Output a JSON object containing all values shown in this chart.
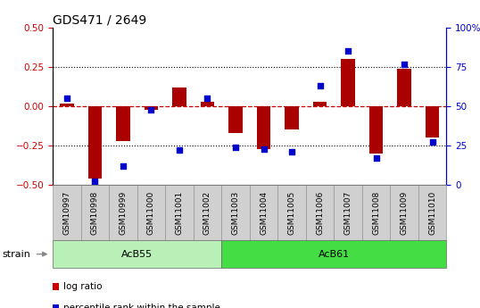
{
  "title": "GDS471 / 2649",
  "samples": [
    "GSM10997",
    "GSM10998",
    "GSM10999",
    "GSM11000",
    "GSM11001",
    "GSM11002",
    "GSM11003",
    "GSM11004",
    "GSM11005",
    "GSM11006",
    "GSM11007",
    "GSM11008",
    "GSM11009",
    "GSM11010"
  ],
  "log_ratio": [
    0.02,
    -0.46,
    -0.22,
    -0.02,
    0.12,
    0.03,
    -0.17,
    -0.27,
    -0.15,
    0.03,
    0.3,
    -0.3,
    0.24,
    -0.2
  ],
  "percentile_rank": [
    55,
    2,
    12,
    48,
    22,
    55,
    24,
    23,
    21,
    63,
    85,
    17,
    77,
    27
  ],
  "ylim_left": [
    -0.5,
    0.5
  ],
  "ylim_right": [
    0,
    100
  ],
  "yticks_left": [
    -0.5,
    -0.25,
    0.0,
    0.25,
    0.5
  ],
  "yticks_right": [
    0,
    25,
    50,
    75,
    100
  ],
  "groups": [
    {
      "label": "AcB55",
      "start": 0,
      "end": 5,
      "color": "#b8f0b8"
    },
    {
      "label": "AcB61",
      "start": 6,
      "end": 13,
      "color": "#44dd44"
    }
  ],
  "bar_color": "#aa0000",
  "dot_color": "#0000cc",
  "hline_color": "#cc0000",
  "dotted_color": "black",
  "plot_bg_color": "white",
  "tick_box_color": "#d0d0d0",
  "strain_label": "strain",
  "legend_items": [
    "log ratio",
    "percentile rank within the sample"
  ],
  "legend_colors": [
    "#cc0000",
    "#0000cc"
  ],
  "bar_width": 0.5,
  "tick_label_fontsize": 6.5,
  "title_fontsize": 10,
  "left_tick_color": "#cc0000",
  "right_tick_color": "#0000cc"
}
